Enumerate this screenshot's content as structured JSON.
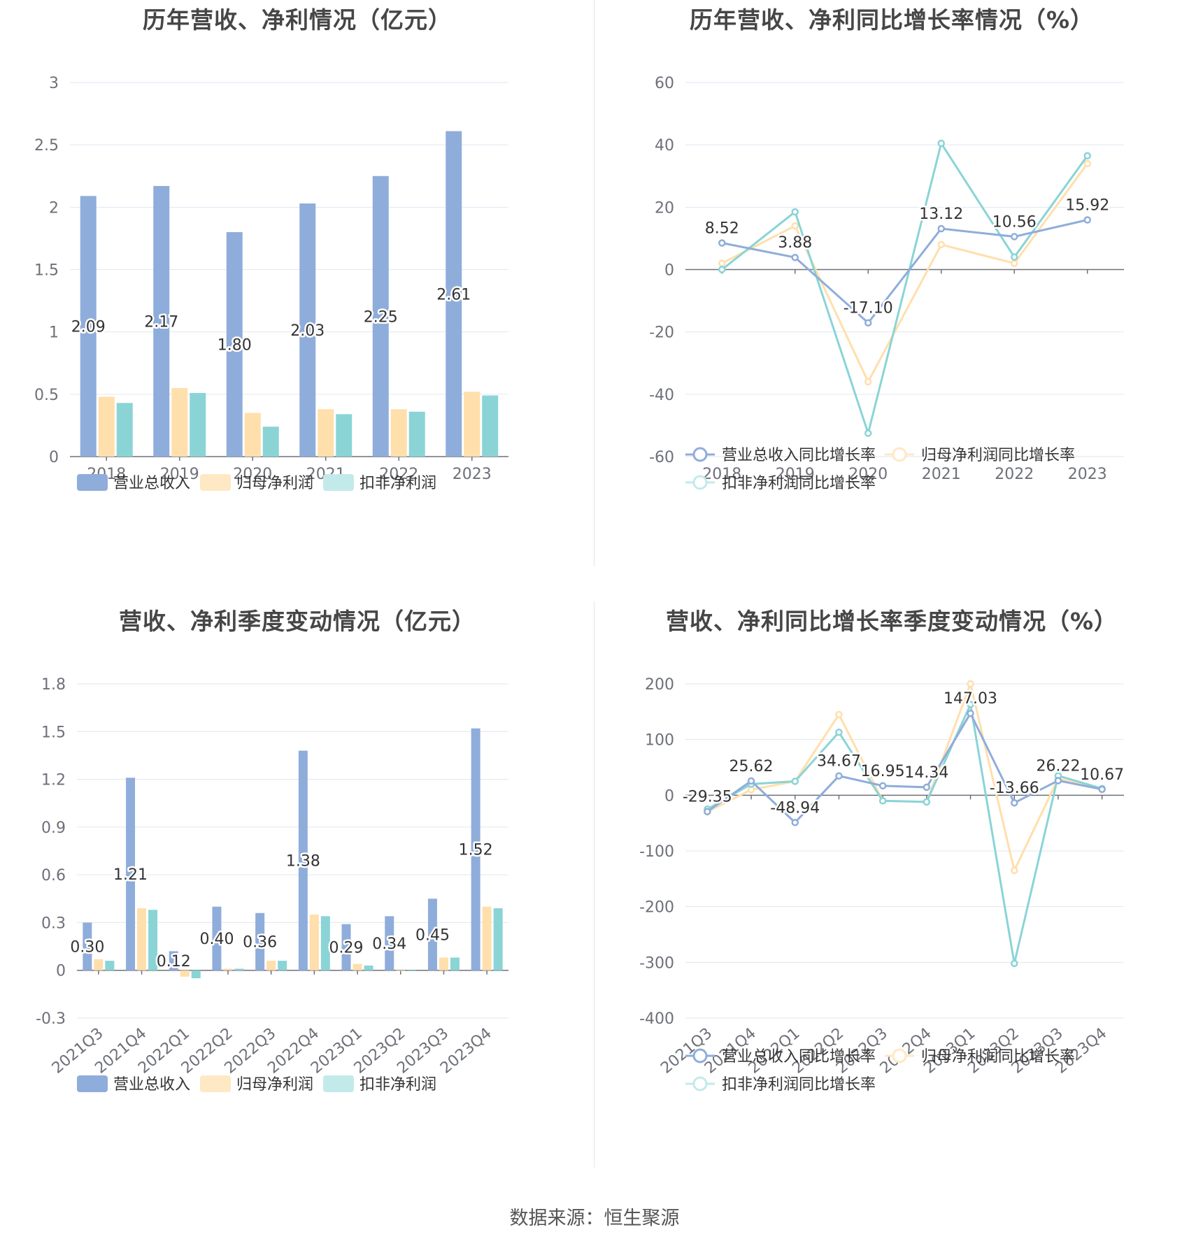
{
  "chart_data": [
    {
      "type": "bar",
      "title": "历年营收、净利情况（亿元）",
      "categories": [
        "2018",
        "2019",
        "2020",
        "2021",
        "2022",
        "2023"
      ],
      "ylim": [
        0,
        3
      ],
      "yticks": [
        "0",
        "0.5",
        "1",
        "1.5",
        "2",
        "2.5",
        "3"
      ],
      "series": [
        {
          "name": "营业总收入",
          "values": [
            2.09,
            2.17,
            1.8,
            2.03,
            2.25,
            2.61
          ],
          "labels": [
            "2.09",
            "2.17",
            "1.80",
            "2.03",
            "2.25",
            "2.61"
          ]
        },
        {
          "name": "归母净利润",
          "values": [
            0.48,
            0.55,
            0.35,
            0.38,
            0.38,
            0.52
          ]
        },
        {
          "name": "扣非净利润",
          "values": [
            0.43,
            0.51,
            0.24,
            0.34,
            0.36,
            0.49
          ]
        }
      ]
    },
    {
      "type": "line",
      "title": "历年营收、净利同比增长率情况（%）",
      "categories": [
        "2018",
        "2019",
        "2020",
        "2021",
        "2022",
        "2023"
      ],
      "ylim": [
        -60,
        60
      ],
      "yticks": [
        "-60",
        "-40",
        "-20",
        "0",
        "20",
        "40",
        "60"
      ],
      "series": [
        {
          "name": "营业总收入同比增长率",
          "values": [
            8.52,
            3.88,
            -17.1,
            13.12,
            10.56,
            15.92
          ],
          "labels": [
            "8.52",
            "3.88",
            "-17.10",
            "13.12",
            "10.56",
            "15.92"
          ]
        },
        {
          "name": "归母净利润同比增长率",
          "values": [
            2,
            14,
            -36,
            8,
            2,
            34
          ]
        },
        {
          "name": "扣非净利润同比增长率",
          "values": [
            0,
            18.5,
            -52.5,
            40.5,
            4,
            36.5
          ]
        }
      ]
    },
    {
      "type": "bar",
      "title": "营收、净利季度变动情况（亿元）",
      "categories": [
        "2021Q3",
        "2021Q4",
        "2022Q1",
        "2022Q2",
        "2022Q3",
        "2022Q4",
        "2023Q1",
        "2023Q2",
        "2023Q3",
        "2023Q4"
      ],
      "ylim": [
        -0.3,
        1.8
      ],
      "yticks": [
        "-0.3",
        "0",
        "0.3",
        "0.6",
        "0.9",
        "1.2",
        "1.5",
        "1.8"
      ],
      "series": [
        {
          "name": "营业总收入",
          "values": [
            0.3,
            1.21,
            0.12,
            0.4,
            0.36,
            1.38,
            0.29,
            0.34,
            0.45,
            1.52
          ],
          "labels": [
            "0.30",
            "1.21",
            "0.12",
            "0.40",
            "0.36",
            "1.38",
            "0.29",
            "0.34",
            "0.45",
            "1.52"
          ]
        },
        {
          "name": "归母净利润",
          "values": [
            0.07,
            0.39,
            -0.04,
            0.01,
            0.06,
            0.35,
            0.04,
            0.0,
            0.08,
            0.4
          ]
        },
        {
          "name": "扣非净利润",
          "values": [
            0.06,
            0.38,
            -0.05,
            0.01,
            0.06,
            0.34,
            0.03,
            -0.005,
            0.08,
            0.39
          ]
        }
      ]
    },
    {
      "type": "line",
      "title": "营收、净利同比增长率季度变动情况（%）",
      "categories": [
        "2021Q3",
        "2021Q4",
        "2022Q1",
        "2022Q2",
        "2022Q3",
        "2022Q4",
        "2023Q1",
        "2023Q2",
        "2023Q3",
        "2023Q4"
      ],
      "ylim": [
        -400,
        200
      ],
      "yticks": [
        "-400",
        "-300",
        "-200",
        "-100",
        "0",
        "100",
        "200"
      ],
      "series": [
        {
          "name": "营业总收入同比增长率",
          "values": [
            -29.35,
            25.62,
            -48.94,
            34.67,
            16.95,
            14.34,
            147.03,
            -13.66,
            26.22,
            10.67
          ],
          "labels": [
            "-29.35",
            "25.62",
            "-48.94",
            "34.67",
            "16.95",
            "14.34",
            "147.03",
            "-13.66",
            "26.22",
            "10.67"
          ]
        },
        {
          "name": "归母净利润同比增长率",
          "values": [
            -30,
            10,
            25,
            145,
            -10,
            -12,
            200,
            -135,
            30,
            10
          ]
        },
        {
          "name": "扣非净利润同比增长率",
          "values": [
            -25,
            20,
            25,
            113,
            -10,
            -12,
            163,
            -302,
            35,
            12
          ]
        }
      ]
    }
  ],
  "colors": [
    "#8FADDB",
    "#FFDFAC",
    "#8AD4D6"
  ],
  "legend_colors": [
    "#8FADDB",
    "#FFE8C4",
    "#C3EAEA"
  ],
  "footer": {
    "source": "数据来源：恒生聚源"
  }
}
